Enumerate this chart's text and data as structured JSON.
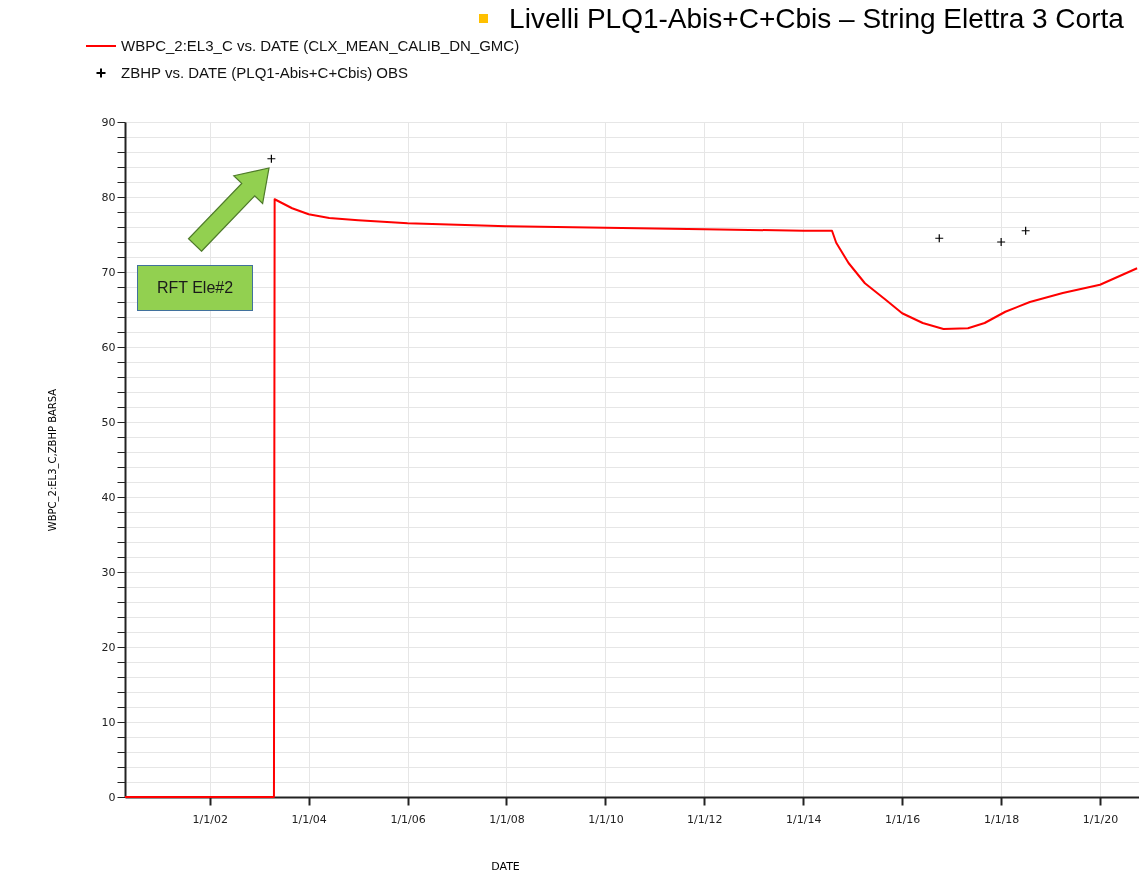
{
  "chart_data": {
    "type": "line",
    "title": "Livelli PLQ1-Abis+C+Cbis – String Elettra 3 Corta",
    "xlabel": "DATE",
    "ylabel": "WBPC_2:EL3_C,ZBHP  BARSA",
    "xlim": [
      "2000-04-15",
      "2020-10-15"
    ],
    "xticks": [
      {
        "value": "2002-01-01",
        "label": "1/1/02"
      },
      {
        "value": "2004-01-01",
        "label": "1/1/04"
      },
      {
        "value": "2006-01-01",
        "label": "1/1/06"
      },
      {
        "value": "2008-01-01",
        "label": "1/1/08"
      },
      {
        "value": "2010-01-01",
        "label": "1/1/10"
      },
      {
        "value": "2012-01-01",
        "label": "1/1/12"
      },
      {
        "value": "2014-01-01",
        "label": "1/1/14"
      },
      {
        "value": "2016-01-01",
        "label": "1/1/16"
      },
      {
        "value": "2018-01-01",
        "label": "1/1/18"
      },
      {
        "value": "2020-01-01",
        "label": "1/1/20"
      }
    ],
    "ylim": [
      0,
      90
    ],
    "yticks": [
      0,
      {
        "value": 2,
        "label": null
      },
      {
        "value": 4,
        "label": null
      },
      {
        "value": 6,
        "label": null
      },
      {
        "value": 8,
        "label": null
      },
      10,
      {
        "value": 12,
        "label": null
      },
      {
        "value": 14,
        "label": null
      },
      {
        "value": 16,
        "label": null
      },
      {
        "value": 18,
        "label": null
      },
      20,
      {
        "value": 22,
        "label": null
      },
      {
        "value": 24,
        "label": null
      },
      {
        "value": 26,
        "label": null
      },
      {
        "value": 28,
        "label": null
      },
      30,
      {
        "value": 32,
        "label": null
      },
      {
        "value": 34,
        "label": null
      },
      {
        "value": 36,
        "label": null
      },
      {
        "value": 38,
        "label": null
      },
      40,
      {
        "value": 42,
        "label": null
      },
      {
        "value": 44,
        "label": null
      },
      {
        "value": 46,
        "label": null
      },
      {
        "value": 48,
        "label": null
      },
      50,
      {
        "value": 52,
        "label": null
      },
      {
        "value": 54,
        "label": null
      },
      {
        "value": 56,
        "label": null
      },
      {
        "value": 58,
        "label": null
      },
      60,
      {
        "value": 62,
        "label": null
      },
      {
        "value": 64,
        "label": null
      },
      {
        "value": 66,
        "label": null
      },
      {
        "value": 68,
        "label": null
      },
      70,
      {
        "value": 72,
        "label": null
      },
      {
        "value": 74,
        "label": null
      },
      {
        "value": 76,
        "label": null
      },
      {
        "value": 78,
        "label": null
      },
      80,
      {
        "value": 82,
        "label": null
      },
      {
        "value": 84,
        "label": null
      },
      {
        "value": 86,
        "label": null
      },
      {
        "value": 88,
        "label": null
      },
      90
    ],
    "grid": true,
    "legend": "top left",
    "line_style": "solid",
    "series": [
      {
        "name": "WBPC_2:EL3_C  vs.  DATE (CLX_MEAN_CALIB_DN_GMC)",
        "type": "line",
        "color": "#ff0000",
        "x": [
          "2000-04-15",
          "2003-04-20",
          "2003-04-25",
          "2003-09",
          "2004-01",
          "2004-06",
          "2005-01",
          "2006-01",
          "2008-01",
          "2010-01",
          "2012-01",
          "2014-01",
          "2014-08",
          "2014-09",
          "2014-12",
          "2015-04",
          "2015-09",
          "2016-01",
          "2016-06",
          "2016-11",
          "2017-05",
          "2017-09",
          "2018-02",
          "2018-08",
          "2019-04",
          "2020-01",
          "2020-10"
        ],
        "values": [
          0,
          0,
          79.7,
          78.5,
          77.7,
          77.2,
          76.9,
          76.5,
          76.1,
          75.9,
          75.7,
          75.5,
          75.5,
          73.9,
          71.2,
          68.5,
          66.3,
          64.5,
          63.2,
          62.4,
          62.5,
          63.2,
          64.7,
          66.0,
          67.2,
          68.3,
          70.5
        ]
      },
      {
        "name": "ZBHP  vs.  DATE (PLQ1-Abis+C+Cbis) OBS",
        "type": "scatter",
        "marker": "cross",
        "color": "#000000",
        "x": [
          "2003-04",
          "2016-10",
          "2018-01",
          "2018-07"
        ],
        "values": [
          85.1,
          74.5,
          74.0,
          75.5
        ]
      }
    ],
    "annotations": [
      "RFT Ele#2"
    ]
  }
}
